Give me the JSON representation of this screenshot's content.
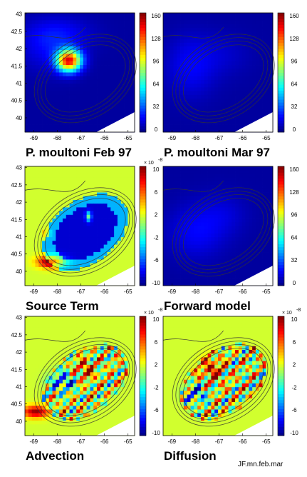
{
  "credit": "JF.mn.feb.mar",
  "chart_data": [
    {
      "type": "heatmap",
      "title": "P. moultoni  Feb 97",
      "x_ticks": [
        "-69",
        "-68",
        "-67",
        "-66",
        "-65"
      ],
      "y_ticks": [
        "43",
        "42.5",
        "42",
        "41.5",
        "41",
        "40.5",
        "40"
      ],
      "colorbar": {
        "ticks": [
          "160",
          "128",
          "96",
          "64",
          "32",
          "0"
        ],
        "min": 0,
        "max": 160,
        "multiplier": ""
      },
      "field": "feb"
    },
    {
      "type": "heatmap",
      "title": "P. moultoni  Mar 97",
      "x_ticks": [
        "-69",
        "-68",
        "-67",
        "-66",
        "-65"
      ],
      "y_ticks": [],
      "colorbar": {
        "ticks": [
          "160",
          "128",
          "96",
          "64",
          "32",
          "0"
        ],
        "min": 0,
        "max": 160,
        "multiplier": ""
      },
      "field": "mar"
    },
    {
      "type": "heatmap",
      "title": "Source Term",
      "x_ticks": [
        "-69",
        "-68",
        "-67",
        "-66",
        "-65"
      ],
      "y_ticks": [
        "43",
        "42.5",
        "42",
        "41.5",
        "41",
        "40.5",
        "40"
      ],
      "colorbar": {
        "ticks": [
          "10",
          "6",
          "2",
          "-2",
          "-6",
          "-10"
        ],
        "min": -10,
        "max": 10,
        "multiplier": "× 10",
        "multiplier_exp": "-8"
      },
      "field": "source"
    },
    {
      "type": "heatmap",
      "title": "Forward model",
      "x_ticks": [
        "-69",
        "-68",
        "-67",
        "-66",
        "-65"
      ],
      "y_ticks": [],
      "colorbar": {
        "ticks": [
          "160",
          "128",
          "96",
          "64",
          "32",
          "0"
        ],
        "min": 0,
        "max": 160,
        "multiplier": ""
      },
      "field": "forward"
    },
    {
      "type": "heatmap",
      "title": "Advection",
      "x_ticks": [
        "-69",
        "-68",
        "-67",
        "-66",
        "-65"
      ],
      "y_ticks": [
        "43",
        "42.5",
        "42",
        "41.5",
        "41",
        "40.5",
        "40"
      ],
      "colorbar": {
        "ticks": [
          "10",
          "6",
          "2",
          "-2",
          "-6",
          "-10"
        ],
        "min": -10,
        "max": 10,
        "multiplier": "× 10",
        "multiplier_exp": "-8"
      },
      "field": "advection"
    },
    {
      "type": "heatmap",
      "title": "Diffusion",
      "x_ticks": [
        "-69",
        "-68",
        "-67",
        "-66",
        "-65"
      ],
      "y_ticks": [],
      "colorbar": {
        "ticks": [
          "10",
          "6",
          "2",
          "-2",
          "-6",
          "-10"
        ],
        "min": -10,
        "max": 10,
        "multiplier": "× 10",
        "multiplier_exp": "-8"
      },
      "field": "diffusion"
    }
  ]
}
